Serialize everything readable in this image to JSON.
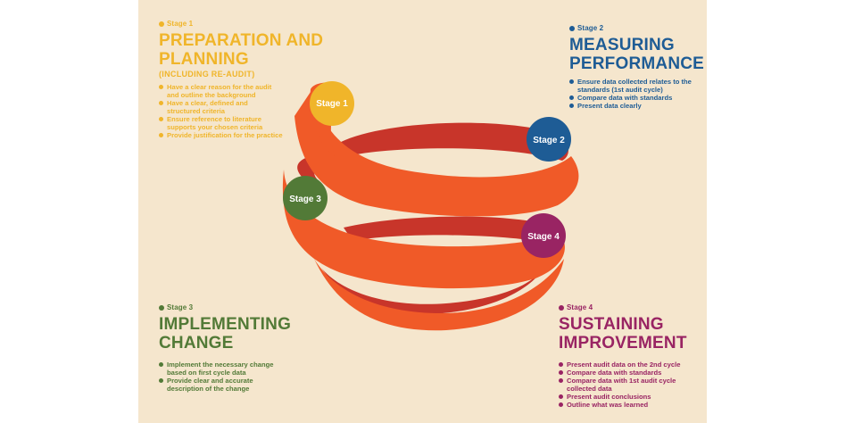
{
  "colors": {
    "background": "#f5e6cd",
    "ribbon_front": "#f05a28",
    "ribbon_back": "#c8352a",
    "stage1": "#f0b52a",
    "stage2": "#1e5c95",
    "stage3": "#527a37",
    "stage4": "#992463"
  },
  "stages": [
    {
      "tag": "Stage 1",
      "title_line1": "PREPARATION AND",
      "title_line2": "PLANNING",
      "subtitle": "(INCLUDING RE-AUDIT)",
      "bullets": [
        "Have a clear reason for the audit and outline the background",
        "Have a clear, defined and structured criteria",
        "Ensure reference to literature supports your chosen criteria",
        "Provide justification for the practice"
      ],
      "circle_label": "Stage 1"
    },
    {
      "tag": "Stage 2",
      "title_line1": "MEASURING",
      "title_line2": "PERFORMANCE",
      "bullets": [
        "Ensure data collected relates to the standards (1st audit cycle)",
        "Compare data with standards",
        "Present data clearly"
      ],
      "circle_label": "Stage 2"
    },
    {
      "tag": "Stage 3",
      "title_line1": "IMPLEMENTING",
      "title_line2": "CHANGE",
      "bullets": [
        "Implement the necessary change based on first cycle data",
        "Provide clear and accurate description of the change"
      ],
      "circle_label": "Stage 3"
    },
    {
      "tag": "Stage 4",
      "title_line1": "SUSTAINING",
      "title_line2": "IMPROVEMENT",
      "bullets": [
        "Present audit data on the 2nd cycle",
        "Compare data with  standards",
        "Compare data with 1st audit cycle collected data",
        "Present audit conclusions",
        "Outline what was learned"
      ],
      "circle_label": "Stage 4"
    }
  ]
}
